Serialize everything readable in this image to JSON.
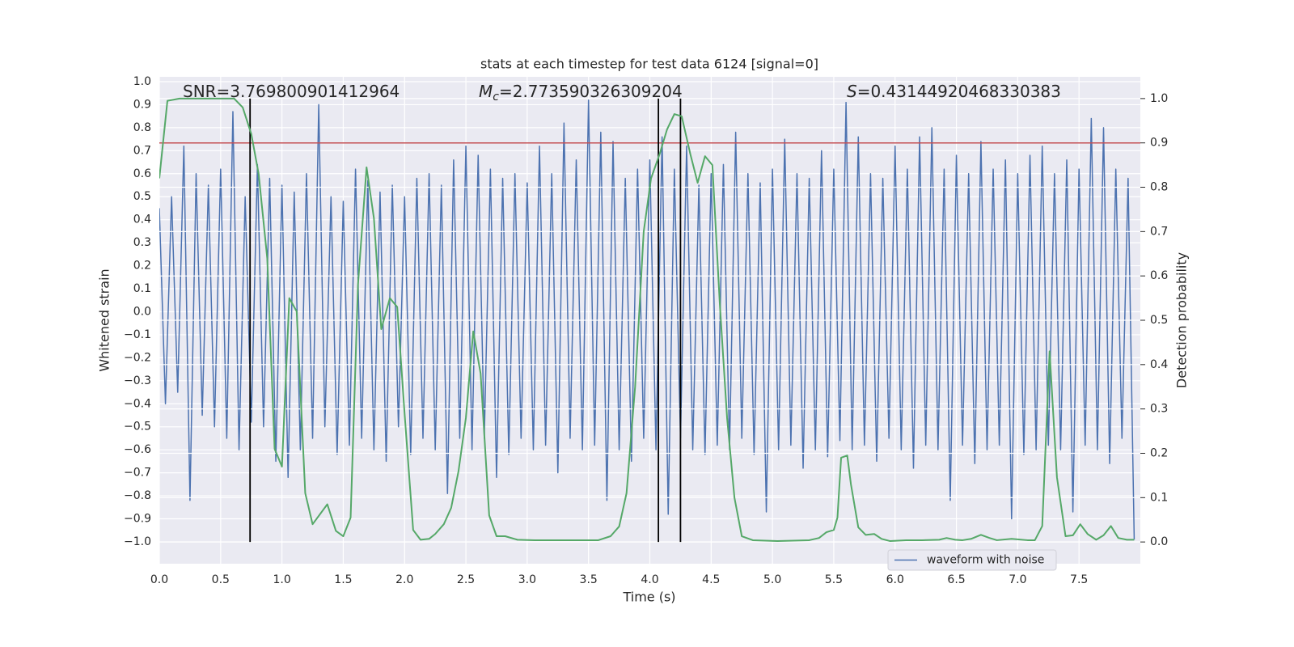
{
  "chart_data": {
    "type": "line",
    "title": "stats at each timestep for test data 6124 [signal=0]",
    "xlabel": "Time (s)",
    "ylabel": "Whitened strain",
    "y2label": "Detection probability",
    "xlim": [
      0,
      8
    ],
    "ylim": [
      -1.095,
      1.021
    ],
    "y2lim": [
      -0.049,
      1.049
    ],
    "grid": true,
    "legend": "lower right",
    "xticks": [
      {
        "value": 0,
        "label": "0.0"
      },
      {
        "value": 0.5,
        "label": "0.5"
      },
      {
        "value": 1,
        "label": "1.0"
      },
      {
        "value": 1.5,
        "label": "1.5"
      },
      {
        "value": 2,
        "label": "2.0"
      },
      {
        "value": 2.5,
        "label": "2.5"
      },
      {
        "value": 3,
        "label": "3.0"
      },
      {
        "value": 3.5,
        "label": "3.5"
      },
      {
        "value": 4,
        "label": "4.0"
      },
      {
        "value": 4.5,
        "label": "4.5"
      },
      {
        "value": 5,
        "label": "5.0"
      },
      {
        "value": 5.5,
        "label": "5.5"
      },
      {
        "value": 6,
        "label": "6.0"
      },
      {
        "value": 6.5,
        "label": "6.5"
      },
      {
        "value": 7,
        "label": "7.0"
      },
      {
        "value": 7.5,
        "label": "7.5"
      }
    ],
    "yticks": [
      {
        "value": 1,
        "label": "1.0"
      },
      {
        "value": 0.9,
        "label": "0.9"
      },
      {
        "value": 0.8,
        "label": "0.8"
      },
      {
        "value": 0.7,
        "label": "0.7"
      },
      {
        "value": 0.6,
        "label": "0.6"
      },
      {
        "value": 0.5,
        "label": "0.5"
      },
      {
        "value": 0.4,
        "label": "0.4"
      },
      {
        "value": 0.3,
        "label": "0.3"
      },
      {
        "value": 0.2,
        "label": "0.2"
      },
      {
        "value": 0.1,
        "label": "0.1"
      },
      {
        "value": 0,
        "label": "0.0"
      },
      {
        "value": -0.1,
        "label": "−0.1"
      },
      {
        "value": -0.2,
        "label": "−0.2"
      },
      {
        "value": -0.3,
        "label": "−0.3"
      },
      {
        "value": -0.4,
        "label": "−0.4"
      },
      {
        "value": -0.5,
        "label": "−0.5"
      },
      {
        "value": -0.6,
        "label": "−0.6"
      },
      {
        "value": -0.7,
        "label": "−0.7"
      },
      {
        "value": -0.8,
        "label": "−0.8"
      },
      {
        "value": -0.9,
        "label": "−0.9"
      },
      {
        "value": -1,
        "label": "−1.0"
      }
    ],
    "y2ticks": [
      {
        "value": 1,
        "label": "1.0"
      },
      {
        "value": 0.9,
        "label": "0.9"
      },
      {
        "value": 0.8,
        "label": "0.8"
      },
      {
        "value": 0.7,
        "label": "0.7"
      },
      {
        "value": 0.6,
        "label": "0.6"
      },
      {
        "value": 0.5,
        "label": "0.5"
      },
      {
        "value": 0.4,
        "label": "0.4"
      },
      {
        "value": 0.3,
        "label": "0.3"
      },
      {
        "value": 0.2,
        "label": "0.2"
      },
      {
        "value": 0.1,
        "label": "0.1"
      },
      {
        "value": 0,
        "label": "0.0"
      }
    ],
    "annotations": [
      {
        "parts": [
          {
            "text": "SNR=3.769800901412964"
          }
        ]
      },
      {
        "parts": [
          {
            "text": "M",
            "italic": true
          },
          {
            "text": "c",
            "italic": true,
            "sub": true
          },
          {
            "text": "=2.773590326309204"
          }
        ]
      },
      {
        "parts": [
          {
            "text": "S",
            "italic": true
          },
          {
            "text": "=0.43144920468330383"
          }
        ]
      }
    ],
    "hlines": [
      {
        "value": 0.9,
        "axis": "y2",
        "color": "#c44e52"
      }
    ],
    "vlines": {
      "x": [
        0.74,
        4.07,
        4.25
      ],
      "color": "#000000",
      "y2span": [
        0,
        1
      ]
    },
    "series": [
      {
        "name": "waveform with noise",
        "color": "#4c72b0",
        "x": [
          0,
          0.05,
          0.1,
          0.15,
          0.2,
          0.25,
          0.3,
          0.35,
          0.4,
          0.45,
          0.5,
          0.55,
          0.6,
          0.65,
          0.7,
          0.75,
          0.8,
          0.85,
          0.9,
          0.95,
          1,
          1.05,
          1.1,
          1.15,
          1.2,
          1.25,
          1.3,
          1.35,
          1.4,
          1.45,
          1.5,
          1.55,
          1.6,
          1.65,
          1.7,
          1.75,
          1.8,
          1.85,
          1.9,
          1.95,
          2,
          2.05,
          2.1,
          2.15,
          2.2,
          2.25,
          2.3,
          2.35,
          2.4,
          2.45,
          2.5,
          2.55,
          2.6,
          2.65,
          2.7,
          2.75,
          2.8,
          2.85,
          2.9,
          2.95,
          3,
          3.05,
          3.1,
          3.15,
          3.2,
          3.25,
          3.3,
          3.35,
          3.4,
          3.45,
          3.5,
          3.55,
          3.6,
          3.65,
          3.7,
          3.75,
          3.8,
          3.85,
          3.9,
          3.95,
          4,
          4.05,
          4.1,
          4.15,
          4.2,
          4.25,
          4.3,
          4.35,
          4.4,
          4.45,
          4.5,
          4.55,
          4.6,
          4.65,
          4.7,
          4.75,
          4.8,
          4.85,
          4.9,
          4.95,
          5,
          5.05,
          5.1,
          5.15,
          5.2,
          5.25,
          5.3,
          5.35,
          5.4,
          5.45,
          5.5,
          5.55,
          5.6,
          5.65,
          5.7,
          5.75,
          5.8,
          5.85,
          5.9,
          5.95,
          6,
          6.05,
          6.1,
          6.15,
          6.2,
          6.25,
          6.3,
          6.35,
          6.4,
          6.45,
          6.5,
          6.55,
          6.6,
          6.65,
          6.7,
          6.75,
          6.8,
          6.85,
          6.9,
          6.95,
          7,
          7.05,
          7.1,
          7.15,
          7.2,
          7.25,
          7.3,
          7.35,
          7.4,
          7.45,
          7.5,
          7.55,
          7.6,
          7.65,
          7.7,
          7.75,
          7.8,
          7.85,
          7.9,
          7.95
        ],
        "values": [
          0.45,
          -0.4,
          0.5,
          -0.35,
          0.72,
          -0.82,
          0.6,
          -0.45,
          0.55,
          -0.5,
          0.62,
          -0.55,
          0.87,
          -0.6,
          0.5,
          -0.48,
          0.64,
          -0.5,
          0.58,
          -0.65,
          0.55,
          -0.72,
          0.52,
          -0.6,
          0.6,
          -0.55,
          0.9,
          -0.5,
          0.5,
          -0.62,
          0.48,
          -0.58,
          0.62,
          -0.55,
          0.57,
          -0.6,
          0.52,
          -0.65,
          0.55,
          -0.5,
          0.5,
          -0.62,
          0.58,
          -0.55,
          0.6,
          -0.6,
          0.55,
          -0.79,
          0.66,
          -0.55,
          0.72,
          -0.6,
          0.68,
          -0.55,
          0.62,
          -0.72,
          0.58,
          -0.62,
          0.6,
          -0.55,
          0.56,
          -0.6,
          0.72,
          -0.58,
          0.6,
          -0.7,
          0.82,
          -0.55,
          0.66,
          -0.6,
          0.92,
          -0.58,
          0.78,
          -0.82,
          0.74,
          -0.6,
          0.58,
          -0.65,
          0.62,
          -0.55,
          0.66,
          -0.6,
          0.76,
          -0.88,
          0.62,
          -0.55,
          0.72,
          -0.6,
          0.55,
          -0.62,
          0.6,
          -0.58,
          0.64,
          -0.6,
          0.78,
          -0.55,
          0.6,
          -0.62,
          0.56,
          -0.87,
          0.62,
          -0.6,
          0.75,
          -0.58,
          0.6,
          -0.68,
          0.58,
          -0.6,
          0.7,
          -0.63,
          0.62,
          -0.56,
          0.91,
          -0.6,
          0.76,
          -0.58,
          0.6,
          -0.65,
          0.58,
          -0.55,
          0.72,
          -0.6,
          0.62,
          -0.68,
          0.76,
          -0.58,
          0.8,
          -0.6,
          0.62,
          -0.82,
          0.68,
          -0.58,
          0.6,
          -0.66,
          0.74,
          -0.6,
          0.62,
          -0.58,
          0.66,
          -0.9,
          0.6,
          -0.62,
          0.68,
          -0.6,
          0.72,
          -0.58,
          0.6,
          -0.6,
          0.66,
          -0.87,
          0.62,
          -0.58,
          0.84,
          -0.6,
          0.8,
          -0.66,
          0.62,
          -0.55,
          0.58,
          -0.99
        ]
      },
      {
        "color": "#55a868",
        "axis": "y2",
        "x": [
          0,
          0.066,
          0.165,
          0.61,
          0.68,
          0.75,
          0.81,
          0.88,
          0.94,
          1,
          1.06,
          1.12,
          1.19,
          1.25,
          1.37,
          1.44,
          1.5,
          1.56,
          1.62,
          1.69,
          1.75,
          1.81,
          1.88,
          1.94,
          2,
          2.07,
          2.13,
          2.2,
          2.25,
          2.32,
          2.38,
          2.44,
          2.5,
          2.56,
          2.62,
          2.69,
          2.75,
          2.82,
          2.92,
          3.06,
          3.32,
          3.58,
          3.68,
          3.75,
          3.81,
          3.88,
          3.95,
          4.01,
          4.08,
          4.14,
          4.2,
          4.26,
          4.33,
          4.39,
          4.45,
          4.51,
          4.57,
          4.63,
          4.69,
          4.75,
          4.84,
          5.04,
          5.3,
          5.38,
          5.44,
          5.5,
          5.53,
          5.56,
          5.61,
          5.64,
          5.7,
          5.76,
          5.83,
          5.89,
          5.96,
          6.09,
          6.22,
          6.36,
          6.42,
          6.49,
          6.55,
          6.62,
          6.7,
          6.77,
          6.83,
          6.95,
          7.08,
          7.14,
          7.2,
          7.26,
          7.32,
          7.39,
          7.45,
          7.51,
          7.57,
          7.64,
          7.7,
          7.76,
          7.82,
          7.89,
          7.95
        ],
        "values": [
          0.82,
          0.995,
          1,
          1,
          0.98,
          0.92,
          0.83,
          0.64,
          0.21,
          0.17,
          0.55,
          0.52,
          0.11,
          0.04,
          0.085,
          0.025,
          0.013,
          0.055,
          0.58,
          0.845,
          0.73,
          0.48,
          0.55,
          0.53,
          0.29,
          0.027,
          0.005,
          0.007,
          0.018,
          0.04,
          0.077,
          0.16,
          0.28,
          0.475,
          0.38,
          0.06,
          0.013,
          0.013,
          0.005,
          0.004,
          0.004,
          0.004,
          0.013,
          0.035,
          0.11,
          0.35,
          0.7,
          0.82,
          0.875,
          0.93,
          0.965,
          0.96,
          0.875,
          0.81,
          0.87,
          0.85,
          0.54,
          0.28,
          0.1,
          0.013,
          0.004,
          0.002,
          0.004,
          0.009,
          0.022,
          0.027,
          0.055,
          0.19,
          0.195,
          0.13,
          0.033,
          0.016,
          0.018,
          0.007,
          0.002,
          0.004,
          0.004,
          0.005,
          0.009,
          0.005,
          0.004,
          0.007,
          0.016,
          0.009,
          0.004,
          0.007,
          0.004,
          0.004,
          0.036,
          0.43,
          0.146,
          0.013,
          0.015,
          0.04,
          0.018,
          0.005,
          0.015,
          0.036,
          0.009,
          0.005,
          0.005
        ]
      }
    ]
  }
}
